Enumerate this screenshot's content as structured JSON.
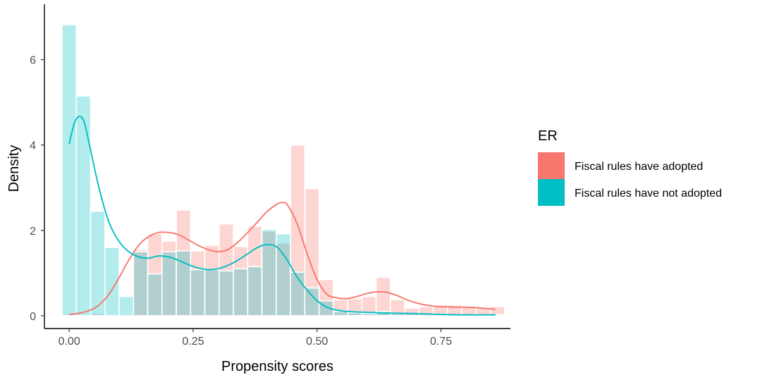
{
  "chart_data": {
    "type": "histogram+density",
    "xlabel": "Propensity scores",
    "ylabel": "Density",
    "xlim": [
      -0.05,
      0.89
    ],
    "ylim": [
      -0.3,
      7.2
    ],
    "x_ticks": [
      {
        "value": 0.0,
        "label": "0.00"
      },
      {
        "value": 0.25,
        "label": "0.25"
      },
      {
        "value": 0.5,
        "label": "0.50"
      },
      {
        "value": 0.75,
        "label": "0.75"
      }
    ],
    "y_ticks": [
      {
        "value": 0,
        "label": "0"
      },
      {
        "value": 2,
        "label": "2"
      },
      {
        "value": 4,
        "label": "4"
      },
      {
        "value": 6,
        "label": "6"
      }
    ],
    "bin_width": 0.0288,
    "bin_start": -0.0144,
    "grid": false,
    "legend": {
      "title": "ER",
      "position": "right",
      "entries": [
        {
          "label": "Fiscal rules have adopted",
          "color": "#F8766D"
        },
        {
          "label": "Fiscal rules have not adopted",
          "color": "#00BFC4"
        }
      ]
    },
    "series": [
      {
        "label": "Fiscal rules have adopted",
        "color": "#F8766D",
        "bar_opacity": 0.3,
        "histogram": [
          0.03,
          0,
          0.05,
          0,
          0,
          1.55,
          1.92,
          1.75,
          2.48,
          1.52,
          1.65,
          2.15,
          1.62,
          2.1,
          1.98,
          1.7,
          4.0,
          2.98,
          0.85,
          0.38,
          0.4,
          0.45,
          0.9,
          0.38,
          0.18,
          0.22,
          0.25,
          0.25,
          0.22,
          0.2,
          0.22
        ],
        "density": {
          "x": [
            0.0,
            0.02,
            0.04,
            0.06,
            0.08,
            0.1,
            0.12,
            0.14,
            0.16,
            0.18,
            0.2,
            0.22,
            0.24,
            0.26,
            0.28,
            0.3,
            0.32,
            0.34,
            0.36,
            0.38,
            0.4,
            0.42,
            0.43,
            0.44,
            0.46,
            0.48,
            0.5,
            0.52,
            0.54,
            0.56,
            0.58,
            0.6,
            0.62,
            0.64,
            0.66,
            0.68,
            0.7,
            0.72,
            0.74,
            0.76,
            0.78,
            0.8,
            0.82,
            0.84,
            0.86
          ],
          "y": [
            0.03,
            0.06,
            0.12,
            0.25,
            0.5,
            0.88,
            1.3,
            1.65,
            1.85,
            1.95,
            1.95,
            1.9,
            1.78,
            1.65,
            1.55,
            1.5,
            1.55,
            1.72,
            1.95,
            2.2,
            2.45,
            2.62,
            2.65,
            2.6,
            2.15,
            1.45,
            0.85,
            0.5,
            0.42,
            0.4,
            0.45,
            0.52,
            0.56,
            0.55,
            0.48,
            0.38,
            0.3,
            0.25,
            0.22,
            0.21,
            0.2,
            0.2,
            0.19,
            0.17,
            0.15
          ]
        }
      },
      {
        "label": "Fiscal rules have not adopted",
        "color": "#00BFC4",
        "bar_opacity": 0.3,
        "histogram": [
          6.82,
          5.15,
          2.45,
          1.6,
          0.45,
          1.5,
          0.98,
          1.5,
          1.52,
          1.08,
          1.08,
          1.05,
          1.1,
          1.15,
          2.02,
          1.92,
          1.02,
          0.65,
          0.35,
          0.1,
          0.07,
          0.05,
          0.1,
          0.05,
          0.05,
          0.04,
          0.03,
          0.02,
          0.02,
          0.01,
          0.02
        ],
        "density": {
          "x": [
            0.0,
            0.01,
            0.02,
            0.03,
            0.04,
            0.06,
            0.08,
            0.1,
            0.12,
            0.14,
            0.16,
            0.18,
            0.2,
            0.22,
            0.24,
            0.26,
            0.28,
            0.3,
            0.32,
            0.34,
            0.36,
            0.38,
            0.4,
            0.42,
            0.44,
            0.46,
            0.48,
            0.5,
            0.52,
            0.54,
            0.56,
            0.6,
            0.65,
            0.7,
            0.75,
            0.8,
            0.86
          ],
          "y": [
            4.02,
            4.5,
            4.67,
            4.55,
            4.05,
            3.0,
            2.2,
            1.75,
            1.5,
            1.38,
            1.35,
            1.4,
            1.38,
            1.3,
            1.2,
            1.12,
            1.08,
            1.1,
            1.18,
            1.3,
            1.45,
            1.6,
            1.67,
            1.6,
            1.3,
            0.9,
            0.6,
            0.35,
            0.2,
            0.13,
            0.1,
            0.08,
            0.06,
            0.05,
            0.03,
            0.02,
            0.02
          ]
        }
      }
    ]
  }
}
